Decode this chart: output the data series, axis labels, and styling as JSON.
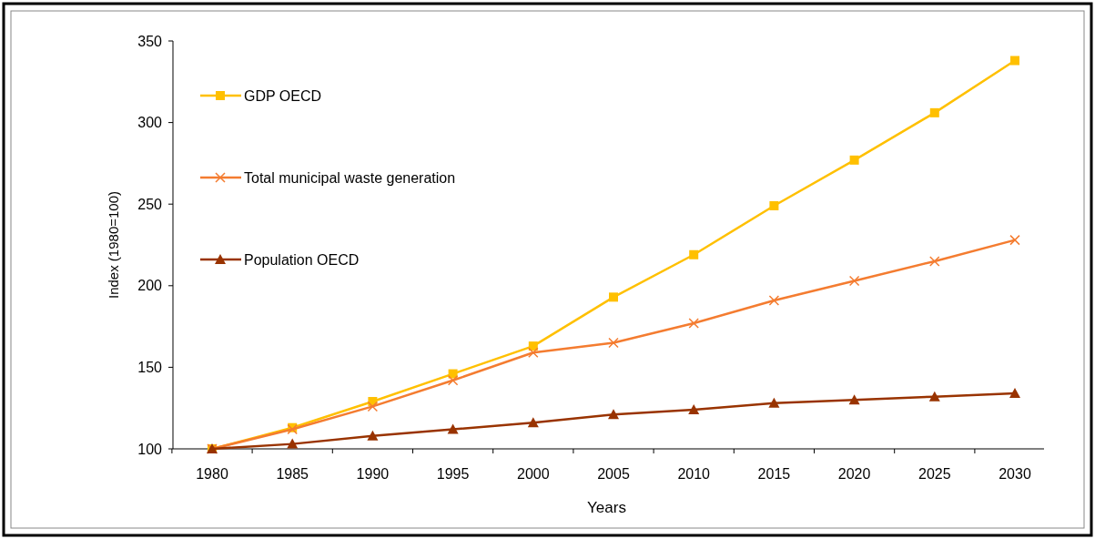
{
  "chart_data": {
    "type": "line",
    "xlabel": "Years",
    "ylabel": "Index (1980=100)",
    "categories": [
      "1980",
      "1985",
      "1990",
      "1995",
      "2000",
      "2005",
      "2010",
      "2015",
      "2020",
      "2025",
      "2030"
    ],
    "ylim": [
      100,
      350
    ],
    "yticks": [
      100,
      150,
      200,
      250,
      300,
      350
    ],
    "grid": false,
    "legend": "top left",
    "line_style": "solid",
    "series": [
      {
        "name": "GDP OECD",
        "color": "#ffc000",
        "marker": "square",
        "values": [
          100,
          113,
          129,
          146,
          163,
          193,
          219,
          249,
          277,
          306,
          338
        ]
      },
      {
        "name": "Total municipal waste generation",
        "color": "#f47c30",
        "marker": "cross",
        "values": [
          100,
          112,
          126,
          142,
          159,
          165,
          177,
          191,
          203,
          215,
          228
        ]
      },
      {
        "name": "Population OECD",
        "color": "#993300",
        "marker": "triangle",
        "values": [
          100,
          103,
          108,
          112,
          116,
          121,
          124,
          128,
          130,
          132,
          134
        ]
      }
    ]
  }
}
